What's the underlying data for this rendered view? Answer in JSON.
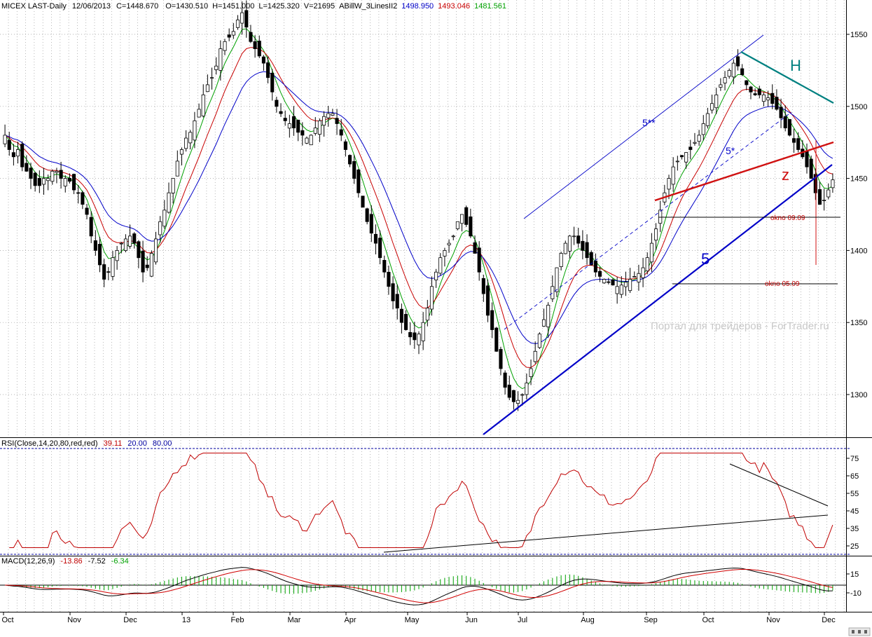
{
  "header": {
    "title": "MICEX LAST-Daily",
    "date": "12/06/2013",
    "close": "C=1448.670",
    "open": "O=1430.510",
    "high": "H=1451.000",
    "low": "L=1425.320",
    "volume": "V=21695",
    "indicator": "ABillW_3LinesII2",
    "line1_value": "1498.950",
    "line2_value": "1493.046",
    "line3_value": "1481.561",
    "line_colors": [
      "#0000c8",
      "#c80000",
      "#00a000"
    ]
  },
  "rsi_header": {
    "label": "RSI(Close,14,20,80,red,red)",
    "value": "39.11",
    "low_level": "20.00",
    "high_level": "80.00"
  },
  "macd_header": {
    "label": "MACD(12,26,9)",
    "macd": "-13.86",
    "signal": "-7.52",
    "hist": "-6.34"
  },
  "annotations": {
    "label_5ss": "5**",
    "label_5s": "5*",
    "label_5": "5",
    "label_h": "H",
    "label_z": "z",
    "okno1": "okno 09.09",
    "okno2": "okno 05.09",
    "watermark": "Портал для трейдеров - ForTrader.ru"
  },
  "colors": {
    "candle_up": "#ffffff",
    "candle_down": "#000000",
    "ma_fast": "#00a000",
    "ma_mid": "#c80000",
    "ma_slow": "#0000c8",
    "channel_line": "#0000c8",
    "neckline": "#d01010",
    "top_line": "#008080",
    "rsi_line": "#c00000",
    "level_line": "#0000a0",
    "macd_line": "#000000",
    "signal_line": "#d00000",
    "histogram": "#00a000",
    "watermark": "#c8c8c8"
  },
  "chart_data": [
    {
      "type": "candlestick",
      "title": "MICEX LAST-Daily",
      "ylim": [
        1265,
        1570
      ],
      "yticks": [
        1300,
        1350,
        1400,
        1450,
        1500,
        1550
      ],
      "x_labels": [
        "Oct",
        "Nov",
        "Dec",
        "13",
        "Feb",
        "Mar",
        "Apr",
        "May",
        "Jun",
        "Jul",
        "Aug",
        "Sep",
        "Oct",
        "Nov",
        "Dec"
      ],
      "closes": [
        1480,
        1470,
        1465,
        1470,
        1458,
        1455,
        1450,
        1445,
        1445,
        1450,
        1450,
        1455,
        1455,
        1450,
        1450,
        1448,
        1442,
        1440,
        1432,
        1425,
        1410,
        1400,
        1390,
        1380,
        1385,
        1395,
        1400,
        1405,
        1408,
        1410,
        1405,
        1395,
        1385,
        1388,
        1398,
        1408,
        1420,
        1428,
        1440,
        1450,
        1462,
        1470,
        1478,
        1482,
        1490,
        1498,
        1508,
        1515,
        1520,
        1528,
        1540,
        1545,
        1548,
        1552,
        1560,
        1565,
        1555,
        1545,
        1540,
        1535,
        1530,
        1520,
        1510,
        1500,
        1495,
        1490,
        1488,
        1485,
        1482,
        1480,
        1478,
        1480,
        1485,
        1490,
        1493,
        1495,
        1495,
        1488,
        1480,
        1470,
        1460,
        1450,
        1440,
        1430,
        1420,
        1412,
        1405,
        1395,
        1385,
        1375,
        1365,
        1360,
        1350,
        1345,
        1340,
        1338,
        1342,
        1350,
        1360,
        1375,
        1385,
        1395,
        1400,
        1405,
        1410,
        1420,
        1425,
        1418,
        1410,
        1398,
        1385,
        1370,
        1355,
        1345,
        1330,
        1318,
        1305,
        1298,
        1295,
        1296,
        1300,
        1308,
        1318,
        1330,
        1342,
        1352,
        1362,
        1375,
        1388,
        1398,
        1405,
        1410,
        1410,
        1405,
        1400,
        1395,
        1390,
        1385,
        1382,
        1380,
        1378,
        1376,
        1375,
        1376,
        1378,
        1380,
        1382,
        1384,
        1388,
        1395,
        1405,
        1415,
        1428,
        1440,
        1450,
        1458,
        1462,
        1465,
        1468,
        1470,
        1475,
        1480,
        1488,
        1495,
        1502,
        1508,
        1515,
        1520,
        1525,
        1530,
        1528,
        1522,
        1515,
        1510,
        1508,
        1508,
        1508,
        1506,
        1502,
        1498,
        1492,
        1485,
        1480,
        1475,
        1470,
        1465,
        1458,
        1450,
        1440,
        1432,
        1435,
        1442,
        1449
      ],
      "ma_fast": [],
      "ma_mid": [],
      "ma_slow": []
    },
    {
      "type": "line",
      "title": "RSI(Close,14,20,80,red,red)",
      "ylim": [
        20,
        80
      ],
      "yticks": [
        25,
        35,
        45,
        55,
        65,
        75
      ],
      "last_value": 39.11
    },
    {
      "type": "line",
      "title": "MACD(12,26,9)",
      "ylim": [
        -18,
        22
      ],
      "yticks": [
        15,
        -10
      ],
      "macd_last": -13.86,
      "signal_last": -7.52,
      "hist_last": -6.34
    }
  ]
}
